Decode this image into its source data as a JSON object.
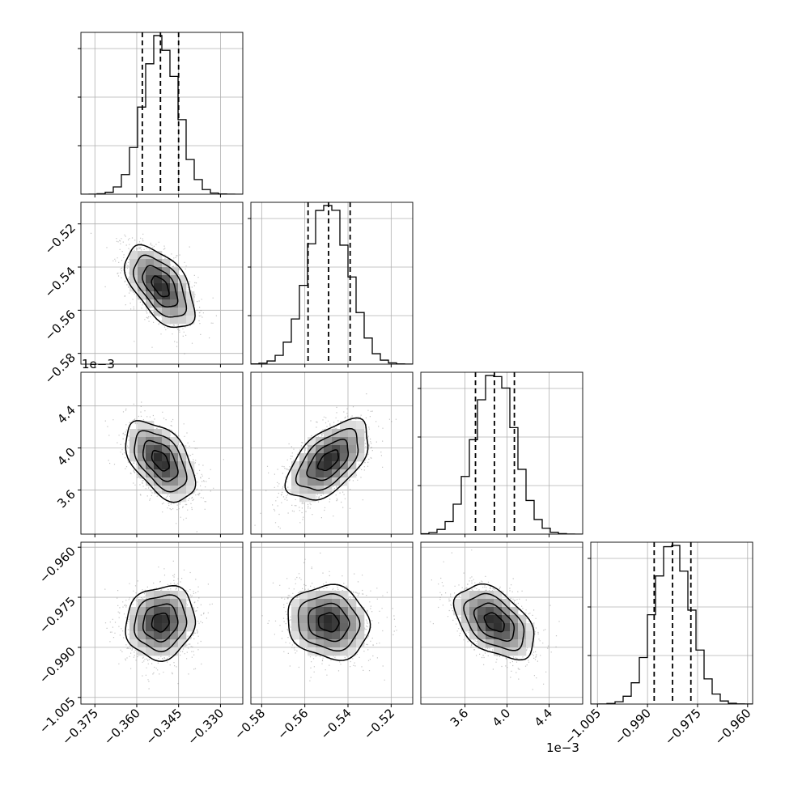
{
  "chart_data": {
    "type": "corner",
    "grid": true,
    "params": [
      {
        "range": [
          -0.38,
          -0.322
        ],
        "ticks": [
          -0.375,
          -0.36,
          -0.345,
          -0.33
        ],
        "tick_labels": [
          "−0.375",
          "−0.360",
          "−0.345",
          "−0.330"
        ],
        "mean": -0.3515,
        "std": 0.0062,
        "quantiles": [
          -0.358,
          -0.3515,
          -0.345
        ],
        "offset_label": ""
      },
      {
        "range": [
          -0.585,
          -0.51
        ],
        "ticks": [
          -0.58,
          -0.56,
          -0.54,
          -0.52
        ],
        "tick_labels": [
          "−0.58",
          "−0.56",
          "−0.54",
          "−0.52"
        ],
        "mean": -0.549,
        "std": 0.0095,
        "quantiles": [
          -0.5585,
          -0.549,
          -0.539
        ],
        "offset_label": ""
      },
      {
        "range": [
          3.18,
          4.72
        ],
        "ticks": [
          3.6,
          4.0,
          4.4
        ],
        "tick_labels": [
          "3.6",
          "4.0",
          "4.4"
        ],
        "mean": 3.88,
        "std": 0.19,
        "quantiles": [
          3.7,
          3.88,
          4.07
        ],
        "offset_label": "1e−3"
      },
      {
        "range": [
          -1.007,
          -0.9585
        ],
        "ticks": [
          -1.005,
          -0.99,
          -0.975,
          -0.96
        ],
        "tick_labels": [
          "−1.005",
          "−0.990",
          "−0.975",
          "−0.960"
        ],
        "mean": -0.9825,
        "std": 0.0055,
        "quantiles": [
          -0.988,
          -0.9825,
          -0.977
        ],
        "offset_label": ""
      }
    ],
    "correlations": [
      [
        1,
        -0.55,
        -0.5,
        0.1
      ],
      [
        -0.55,
        1,
        0.55,
        -0.1
      ],
      [
        -0.5,
        0.55,
        1,
        -0.45
      ],
      [
        0.1,
        -0.1,
        -0.45,
        1
      ]
    ],
    "offset_label_text": "1e−3"
  }
}
